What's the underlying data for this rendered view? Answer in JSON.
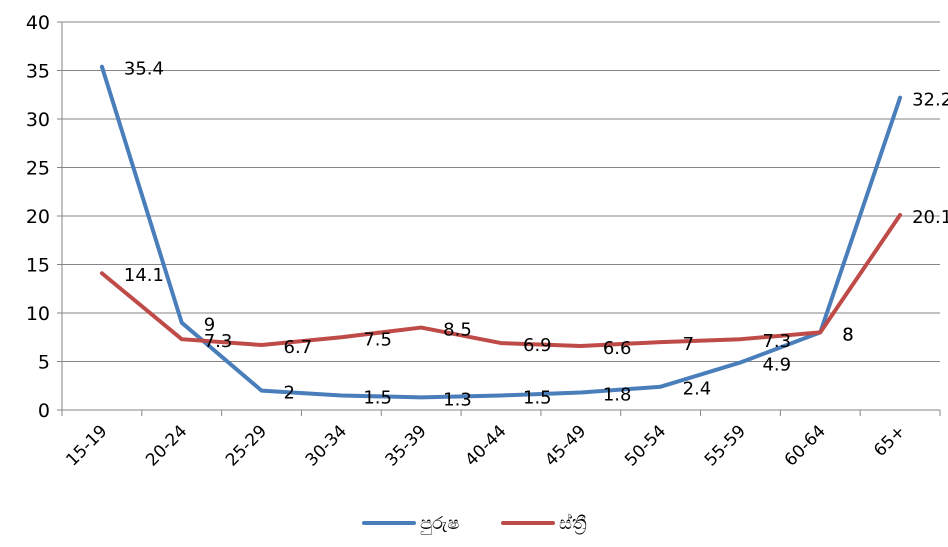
{
  "chart_data": {
    "type": "line",
    "categories": [
      "15-19",
      "20-24",
      "25-29",
      "30-34",
      "35-39",
      "40-44",
      "45-49",
      "50-54",
      "55-59",
      "60-64",
      "65+"
    ],
    "series": [
      {
        "name": "පුරුෂ",
        "color": "#4a7ebb",
        "values": [
          35.4,
          9,
          2,
          1.5,
          1.3,
          1.5,
          1.8,
          2.4,
          4.9,
          8,
          32.2
        ],
        "labels": [
          "35.4",
          "9",
          "2",
          "1.5",
          "1.3",
          "1.5",
          "1.8",
          "2.4",
          "4.9",
          "8",
          "32.2"
        ]
      },
      {
        "name": "ස්ත්‍රී",
        "color": "#be4b48",
        "values": [
          14.1,
          7.3,
          6.7,
          7.5,
          8.5,
          6.9,
          6.6,
          7,
          7.3,
          8,
          20.1
        ],
        "labels": [
          "14.1",
          "7.3",
          "6.7",
          "7.5",
          "8.5",
          "6.9",
          "6.6",
          "7",
          "7.3",
          "8",
          "20.1"
        ]
      }
    ],
    "y_ticks": [
      "0",
      "5",
      "10",
      "15",
      "20",
      "25",
      "30",
      "35",
      "40"
    ],
    "ylim": [
      0,
      40
    ],
    "grid": true,
    "legend_position": "bottom",
    "title": "",
    "xlabel": "",
    "ylabel": ""
  }
}
